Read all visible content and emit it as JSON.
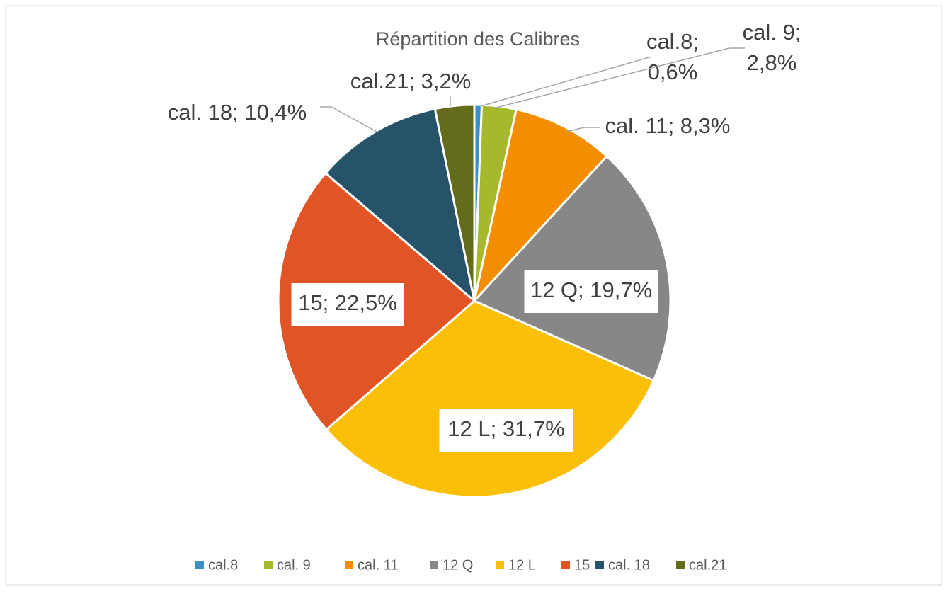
{
  "chart_data": {
    "type": "pie",
    "title": "Répartition des Calibres",
    "categories": [
      "cal.8",
      "cal. 9",
      "cal. 11",
      "12 Q",
      "12 L",
      "15",
      "cal. 18",
      "cal.21"
    ],
    "values": [
      0.6,
      2.8,
      8.3,
      19.7,
      31.7,
      22.5,
      10.4,
      3.2
    ],
    "value_labels": [
      "cal.8; 0,6%",
      "cal. 9; 2,8%",
      "cal. 11; 8,3%",
      "12 Q; 19,7%",
      "12 L; 31,7%",
      "15; 22,5%",
      "cal. 18; 10,4%",
      "cal.21; 3,2%"
    ],
    "colors": [
      "#3a8fc4",
      "#a6b92c",
      "#f28e00",
      "#878787",
      "#fbbf07",
      "#e05426",
      "#265369",
      "#646c1c"
    ],
    "legend": "bottom"
  }
}
